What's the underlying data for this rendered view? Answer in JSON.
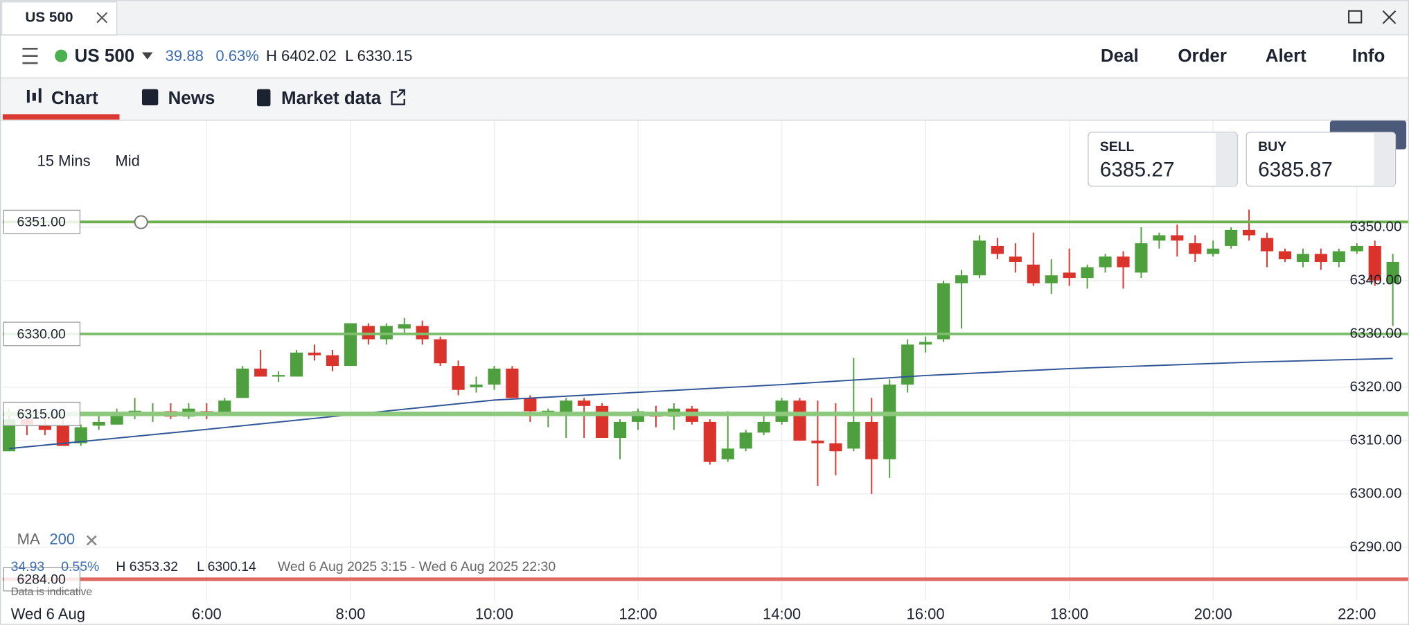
{
  "window": {
    "tab_title": "US 500"
  },
  "toolbar": {
    "instrument": "US 500",
    "change": "39.88",
    "change_pct": "0.63%",
    "high": "H 6402.02",
    "low": "L 6330.15",
    "actions": [
      "Deal",
      "Order",
      "Alert",
      "Info"
    ]
  },
  "tabs": [
    "Chart",
    "News",
    "Market data"
  ],
  "chart_controls": {
    "interval": "15 Mins",
    "price_type": "Mid"
  },
  "quote": {
    "sell_label": "SELL",
    "sell": "6385.27",
    "buy_label": "BUY",
    "buy": "6385.87"
  },
  "indicator": {
    "name": "MA",
    "period": "200"
  },
  "summary": {
    "change": "34.93",
    "change_pct": "0.55%",
    "high": "H 6353.32",
    "low": "L 6300.14",
    "range": "Wed 6 Aug 2025 3:15 - Wed 6 Aug 2025 22:30",
    "note": "Data is indicative"
  },
  "chart_data": {
    "type": "candlestick",
    "x": [
      3.25,
      3.5,
      3.75,
      4,
      4.25,
      4.5,
      4.75,
      5,
      5.25,
      5.5,
      5.75,
      6,
      6.25,
      6.5,
      6.75,
      7,
      7.25,
      7.5,
      7.75,
      8,
      8.25,
      8.5,
      8.75,
      9,
      9.25,
      9.5,
      9.75,
      10,
      10.25,
      10.5,
      10.75,
      11,
      11.25,
      11.5,
      11.75,
      12,
      12.25,
      12.5,
      12.75,
      13,
      13.25,
      13.5,
      13.75,
      14,
      14.25,
      14.5,
      14.75,
      15,
      15.25,
      15.5,
      15.75,
      16,
      16.25,
      16.5,
      16.75,
      17,
      17.25,
      17.5,
      17.75,
      18,
      18.25,
      18.5,
      18.75,
      19,
      19.25,
      19.5,
      19.75,
      20,
      20.25,
      20.5,
      20.75,
      21,
      21.25,
      21.5,
      21.75,
      22,
      22.25,
      22.5
    ],
    "open": [
      6308,
      6314,
      6313,
      6313,
      6309.5,
      6312.8,
      6313,
      6315.5,
      6315,
      6315.5,
      6314.5,
      6315.5,
      6315,
      6318,
      6323.5,
      6322,
      6322,
      6326.5,
      6326,
      6324,
      6331.5,
      6329,
      6331,
      6331.5,
      6329,
      6324,
      6320,
      6320.5,
      6323.5,
      6318,
      6315.5,
      6315,
      6317.5,
      6316.5,
      6310.5,
      6313.5,
      6315,
      6314.5,
      6316,
      6313.5,
      6306.5,
      6308.5,
      6311.5,
      6313.5,
      6317.5,
      6310,
      6309.5,
      6308.5,
      6313.5,
      6306.5,
      6320.5,
      6328,
      6329,
      6339.5,
      6341,
      6346.5,
      6344.5,
      6343,
      6339.5,
      6341.5,
      6340.5,
      6342.5,
      6344.5,
      6341.5,
      6347.5,
      6348.5,
      6347,
      6345,
      6346.5,
      6349.5,
      6348,
      6345.5,
      6343.5,
      6345,
      6343.5,
      6345.5,
      6346.5,
      6339.5
    ],
    "high": [
      6316,
      6316,
      6315,
      6314,
      6313,
      6315,
      6316,
      6318,
      6317,
      6317,
      6317,
      6317,
      6318,
      6324,
      6327,
      6323,
      6327,
      6328,
      6327,
      6332,
      6332,
      6332,
      6333,
      6332.5,
      6329.5,
      6325,
      6322,
      6324,
      6324,
      6318.5,
      6316,
      6318,
      6318,
      6317,
      6314,
      6316,
      6316.5,
      6317,
      6316.5,
      6314,
      6315.5,
      6312,
      6315,
      6318,
      6318,
      6317.5,
      6317,
      6325.5,
      6318,
      6321.5,
      6329,
      6329.5,
      6340,
      6342,
      6348.5,
      6348,
      6347,
      6349,
      6344,
      6346,
      6343,
      6345,
      6345.5,
      6350,
      6349,
      6350.5,
      6348.5,
      6347.5,
      6350,
      6353.3,
      6349,
      6346,
      6346,
      6346,
      6346,
      6347,
      6347.5,
      6345
    ],
    "low": [
      6308,
      6311,
      6311,
      6309,
      6309,
      6312,
      6313,
      6314,
      6313.5,
      6314,
      6314,
      6314,
      6315,
      6318,
      6322,
      6321,
      6322,
      6325,
      6323,
      6324,
      6328,
      6328,
      6330,
      6328,
      6324,
      6318.5,
      6319,
      6319.5,
      6318,
      6313.5,
      6312.5,
      6310.5,
      6310.5,
      6310.5,
      6306.5,
      6312,
      6312.5,
      6312,
      6313,
      6305.5,
      6306,
      6308,
      6311,
      6313,
      6310,
      6301.5,
      6303.5,
      6308,
      6300,
      6303,
      6319,
      6326.5,
      6328.5,
      6331,
      6340.5,
      6344,
      6341.5,
      6339,
      6337.5,
      6339,
      6338.5,
      6341.5,
      6338.5,
      6340.5,
      6346,
      6344.5,
      6343.5,
      6344.5,
      6346,
      6347.5,
      6342.5,
      6343.5,
      6342.5,
      6342,
      6342.5,
      6345,
      6339,
      6331.5
    ],
    "close": [
      6314,
      6313,
      6312,
      6309,
      6312.5,
      6313.5,
      6315,
      6315.6,
      6315.2,
      6314.5,
      6316,
      6315,
      6317.5,
      6323.5,
      6322,
      6322.3,
      6326.5,
      6326,
      6324,
      6332,
      6329,
      6331.5,
      6331.8,
      6329,
      6324.5,
      6319.5,
      6320.5,
      6323.5,
      6318,
      6315.5,
      6315.6,
      6317.5,
      6316.5,
      6310.5,
      6313.5,
      6315.5,
      6314.5,
      6316,
      6313.5,
      6306,
      6308.5,
      6311.5,
      6313.5,
      6317.5,
      6310,
      6309.5,
      6308,
      6313.5,
      6306.5,
      6320.5,
      6328,
      6328.5,
      6339.5,
      6341,
      6347.5,
      6345,
      6343.5,
      6339.5,
      6341,
      6340.5,
      6342.5,
      6344.5,
      6342.5,
      6347,
      6348.5,
      6347.5,
      6345,
      6346,
      6349.5,
      6348.5,
      6345.5,
      6344,
      6345,
      6343.5,
      6345.5,
      6346.5,
      6340,
      6343.5
    ],
    "up_color": "#4e9f3d",
    "down_color": "#d9332b",
    "overlays": [
      {
        "color": "#2f5597",
        "x": [
          3.25,
          6,
          10,
          14,
          16,
          18,
          20.5,
          22.5
        ],
        "values": [
          6308.5,
          6312.1,
          6317.6,
          6320.5,
          6322.2,
          6323.5,
          6324.7,
          6325.4
        ]
      }
    ],
    "levels": [
      {
        "value": 6351,
        "label": "6351.00",
        "color": "#6ab04c",
        "width": 3
      },
      {
        "value": 6330,
        "label": "6330.00",
        "color": "#7cbf6a",
        "width": 3
      },
      {
        "value": 6315,
        "label": "6315.00",
        "color": "#8dc97d",
        "width": 5
      },
      {
        "value": 6284,
        "label": "6284.00",
        "color": "#e0675f",
        "width": 4
      }
    ],
    "xlim": [
      3.1625,
      22.725
    ],
    "xticks": [
      {
        "value": 6,
        "label": "6:00"
      },
      {
        "value": 8,
        "label": "8:00"
      },
      {
        "value": 10,
        "label": "10:00"
      },
      {
        "value": 12,
        "label": "12:00"
      },
      {
        "value": 14,
        "label": "14:00"
      },
      {
        "value": 16,
        "label": "16:00"
      },
      {
        "value": 18,
        "label": "18:00"
      },
      {
        "value": 20,
        "label": "20:00"
      },
      {
        "value": 22,
        "label": "22:00"
      }
    ],
    "date_label": "Wed 6 Aug",
    "ylim": [
      6280,
      6370
    ],
    "yticks": [
      {
        "value": 6290,
        "label": "6290.00"
      },
      {
        "value": 6300,
        "label": "6300.00"
      },
      {
        "value": 6310,
        "label": "6310.00"
      },
      {
        "value": 6320,
        "label": "6320.00"
      },
      {
        "value": 6330,
        "label": "6330.00"
      },
      {
        "value": 6340,
        "label": "6340.00"
      },
      {
        "value": 6350,
        "label": "6350.00"
      }
    ],
    "grid": true
  }
}
